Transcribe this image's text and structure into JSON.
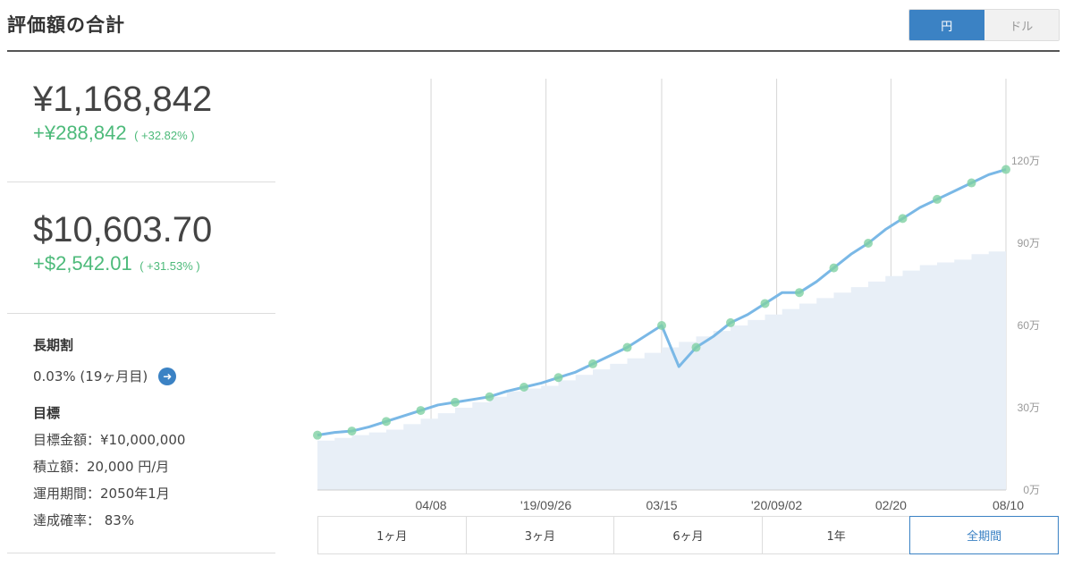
{
  "header": {
    "title": "評価額の合計",
    "currency_jpy": "円",
    "currency_usd": "ドル"
  },
  "summary_jpy": {
    "value": "¥1,168,842",
    "gain": "+¥288,842",
    "gain_pct": "( +32.82% )"
  },
  "summary_usd": {
    "value": "$10,603.70",
    "gain": "+$2,542.01",
    "gain_pct": "( +31.53% )"
  },
  "details": {
    "fee_label": "長期割",
    "fee_value": "0.03% (19ヶ月目)",
    "goal_label": "目標",
    "goal_amount": "目標金額：¥10,000,000",
    "contribution": "積立額：20,000 円/月",
    "period": "運用期間：2050年1月",
    "achievement": "達成確率： 83%"
  },
  "periods": [
    "1ヶ月",
    "3ヶ月",
    "6ヶ月",
    "1年",
    "全期間"
  ],
  "active_period": "全期間",
  "colors": {
    "accent": "#3b82c4",
    "gain": "#4dba7a",
    "line": "#7ab8e6",
    "deposit_fill": "#e8eff7",
    "dot": "#7fd1a3"
  },
  "chart_data": {
    "type": "line",
    "x_ticks": [
      "04/08",
      "'19/09/26",
      "03/15",
      "'20/09/02",
      "02/20",
      "08/10"
    ],
    "y_ticks": [
      "0万",
      "30万",
      "60万",
      "90万",
      "120万"
    ],
    "ylim": [
      0,
      1500000
    ],
    "series": [
      {
        "values": [
          200000,
          210000,
          215000,
          230000,
          250000,
          270000,
          290000,
          310000,
          320000,
          330000,
          340000,
          360000,
          375000,
          390000,
          410000,
          430000,
          460000,
          490000,
          520000,
          560000,
          600000,
          450000,
          520000,
          560000,
          610000,
          640000,
          680000,
          720000,
          720000,
          760000,
          810000,
          860000,
          900000,
          950000,
          990000,
          1030000,
          1060000,
          1090000,
          1120000,
          1150000,
          1168842
        ]
      },
      {
        "values": [
          180000,
          190000,
          200000,
          210000,
          220000,
          240000,
          260000,
          280000,
          300000,
          320000,
          340000,
          360000,
          370000,
          380000,
          400000,
          420000,
          440000,
          460000,
          480000,
          500000,
          520000,
          540000,
          560000,
          580000,
          600000,
          620000,
          640000,
          660000,
          680000,
          700000,
          720000,
          740000,
          760000,
          780000,
          800000,
          820000,
          830000,
          840000,
          860000,
          870000,
          880000
        ]
      }
    ]
  }
}
